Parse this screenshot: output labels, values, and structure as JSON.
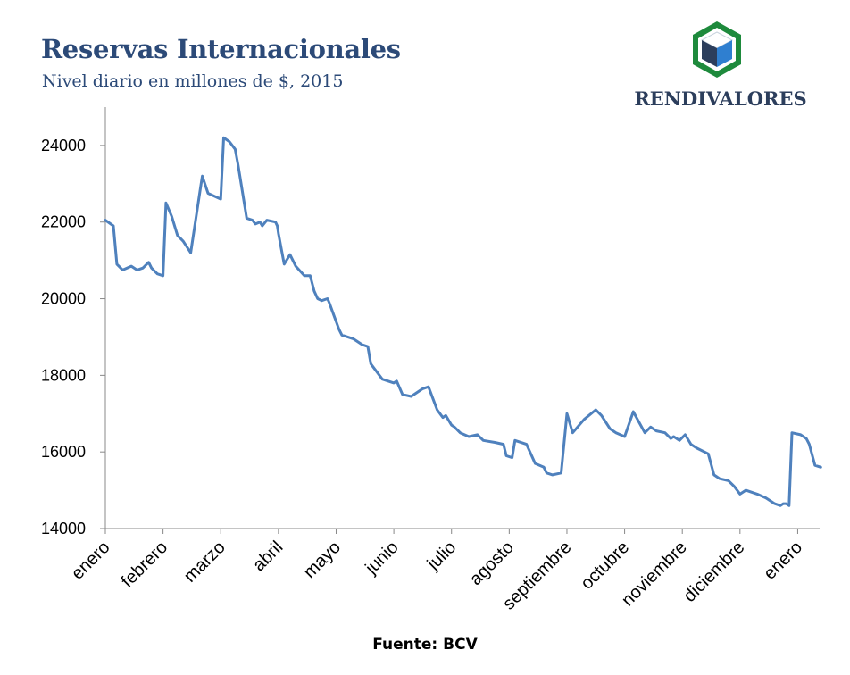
{
  "logo": {
    "text": "RENDIVALORES",
    "colors": {
      "green": "#1e8a3c",
      "blue": "#2f7fd0",
      "navy": "#2c3e5c"
    }
  },
  "source": "Fuente: BCV",
  "chart_data": {
    "type": "line",
    "title": "Reservas Internacionales",
    "subtitle": "Nivel diario en millones de $, 2015",
    "xlabel": "",
    "ylabel": "",
    "ylim": [
      14000,
      25000
    ],
    "yticks": [
      14000,
      16000,
      18000,
      20000,
      22000,
      24000
    ],
    "months": [
      "enero",
      "febrero",
      "marzo",
      "abril",
      "mayo",
      "junio",
      "julio",
      "agosto",
      "septiembre",
      "octubre",
      "noviembre",
      "diciembre",
      "enero"
    ],
    "line_color": "#4f81bd",
    "grid": false,
    "series": [
      {
        "name": "Reservas Internacionales",
        "x": [
          0.0,
          0.14,
          0.2,
          0.3,
          0.45,
          0.55,
          0.65,
          0.75,
          0.8,
          0.9,
          1.0,
          1.05,
          1.15,
          1.25,
          1.35,
          1.48,
          1.65,
          1.68,
          1.78,
          2.0,
          2.05,
          2.15,
          2.25,
          2.3,
          2.45,
          2.55,
          2.6,
          2.68,
          2.72,
          2.8,
          2.95,
          2.98,
          3.0,
          3.1,
          3.2,
          3.3,
          3.45,
          3.55,
          3.62,
          3.68,
          3.75,
          3.85,
          3.88,
          4.05,
          4.1,
          4.3,
          4.45,
          4.55,
          4.6,
          4.8,
          5.0,
          5.05,
          5.15,
          5.3,
          5.45,
          5.5,
          5.6,
          5.75,
          5.85,
          5.9,
          6.0,
          6.05,
          6.15,
          6.3,
          6.45,
          6.55,
          6.75,
          6.9,
          6.95,
          7.05,
          7.1,
          7.3,
          7.45,
          7.6,
          7.65,
          7.75,
          7.9,
          8.0,
          8.1,
          8.3,
          8.5,
          8.6,
          8.75,
          8.85,
          9.0,
          9.15,
          9.35,
          9.45,
          9.55,
          9.7,
          9.8,
          9.85,
          9.95,
          10.05,
          10.15,
          10.25,
          10.45,
          10.55,
          10.65,
          10.8,
          10.9,
          11.0,
          11.1,
          11.3,
          11.45,
          11.55,
          11.6,
          11.7,
          11.75,
          11.8,
          11.85,
          11.9,
          12.05,
          12.15,
          12.2,
          12.3,
          12.4
        ],
        "values": [
          22050,
          21900,
          20900,
          20750,
          20850,
          20750,
          20800,
          20950,
          20800,
          20650,
          20600,
          22500,
          22150,
          21650,
          21500,
          21200,
          22900,
          23200,
          22750,
          22600,
          24200,
          24100,
          23900,
          23500,
          22100,
          22050,
          21950,
          22000,
          21900,
          22050,
          22000,
          21900,
          21700,
          20900,
          21150,
          20850,
          20600,
          20600,
          20200,
          20000,
          19950,
          20000,
          19900,
          19200,
          19050,
          18950,
          18800,
          18750,
          18300,
          17900,
          17800,
          17850,
          17500,
          17450,
          17600,
          17650,
          17700,
          17100,
          16900,
          16950,
          16700,
          16650,
          16500,
          16400,
          16450,
          16300,
          16250,
          16200,
          15900,
          15850,
          16300,
          16200,
          15700,
          15600,
          15450,
          15400,
          15450,
          17000,
          16500,
          16850,
          17100,
          16950,
          16600,
          16500,
          16400,
          17050,
          16500,
          16650,
          16550,
          16500,
          16350,
          16400,
          16300,
          16450,
          16200,
          16100,
          15950,
          15400,
          15300,
          15250,
          15100,
          14900,
          15000,
          14900,
          14800,
          14700,
          14650,
          14600,
          14650,
          14650,
          14600,
          16500,
          16450,
          16350,
          16200,
          15650,
          15600
        ]
      }
    ]
  }
}
